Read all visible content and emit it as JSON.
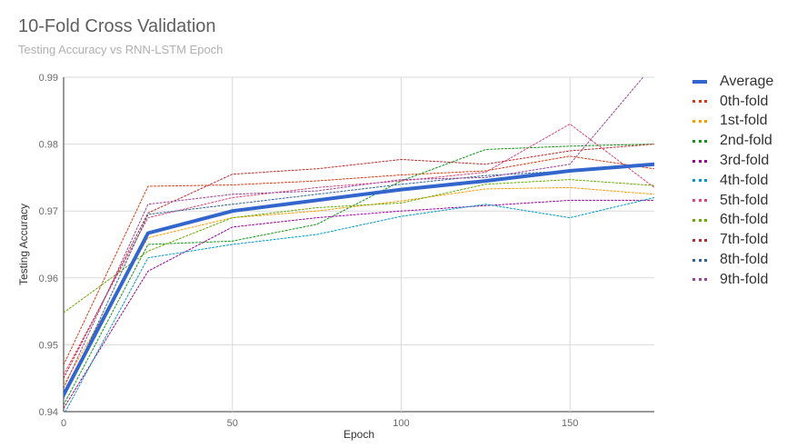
{
  "chart_data": {
    "type": "line",
    "title": "10-Fold Cross Validation",
    "subtitle": "Testing Accuracy vs RNN-LSTM Epoch",
    "xlabel": "Epoch",
    "ylabel": "Testing Accuracy",
    "xlim": [
      0,
      175
    ],
    "ylim": [
      0.94,
      0.99
    ],
    "xticks": [
      0,
      50,
      100,
      150
    ],
    "yticks": [
      0.94,
      0.95,
      0.96,
      0.97,
      0.98,
      0.99
    ],
    "xtick_labels": [
      "0",
      "50",
      "100",
      "150"
    ],
    "ytick_labels": [
      "0.94",
      "0.95",
      "0.96",
      "0.97",
      "0.98",
      "0.99"
    ],
    "grid": true,
    "legend_position": "right",
    "x": [
      0,
      25,
      50,
      75,
      100,
      125,
      150,
      175
    ],
    "series": [
      {
        "name": "Average",
        "color": "#3366cc",
        "style": "solid",
        "values": [
          0.9425,
          0.9667,
          0.97,
          0.9716,
          0.9732,
          0.9745,
          0.976,
          0.977
        ]
      },
      {
        "name": "0th-fold",
        "color": "#dc3912",
        "style": "dotted",
        "values": [
          0.947,
          0.9737,
          0.9739,
          0.9745,
          0.9754,
          0.976,
          0.9782,
          0.9763
        ]
      },
      {
        "name": "1st-fold",
        "color": "#ff9900",
        "style": "dotted",
        "values": [
          0.944,
          0.966,
          0.969,
          0.97,
          0.9715,
          0.9733,
          0.9735,
          0.9725
        ]
      },
      {
        "name": "2nd-fold",
        "color": "#109618",
        "style": "dotted",
        "values": [
          0.941,
          0.965,
          0.9655,
          0.968,
          0.9745,
          0.9792,
          0.9797,
          0.98
        ]
      },
      {
        "name": "3rd-fold",
        "color": "#990099",
        "style": "dotted",
        "values": [
          0.9405,
          0.961,
          0.9676,
          0.969,
          0.97,
          0.9708,
          0.9716,
          0.9716
        ]
      },
      {
        "name": "4th-fold",
        "color": "#0099c6",
        "style": "dotted",
        "values": [
          0.9395,
          0.963,
          0.965,
          0.9665,
          0.9692,
          0.971,
          0.969,
          0.972
        ]
      },
      {
        "name": "5th-fold",
        "color": "#dd4477",
        "style": "dotted",
        "values": [
          0.9455,
          0.969,
          0.972,
          0.9735,
          0.9745,
          0.9758,
          0.983,
          0.9735
        ]
      },
      {
        "name": "6th-fold",
        "color": "#66aa00",
        "style": "dotted",
        "values": [
          0.9548,
          0.964,
          0.969,
          0.9705,
          0.9712,
          0.974,
          0.9747,
          0.9738
        ]
      },
      {
        "name": "7th-fold",
        "color": "#b82e2e",
        "style": "dotted",
        "values": [
          0.945,
          0.9697,
          0.9755,
          0.9763,
          0.9777,
          0.977,
          0.979,
          0.98
        ]
      },
      {
        "name": "8th-fold",
        "color": "#316395",
        "style": "dotted",
        "values": [
          0.942,
          0.9695,
          0.971,
          0.9725,
          0.974,
          0.9753,
          0.976,
          0.9768
        ]
      },
      {
        "name": "9th-fold",
        "color": "#994499",
        "style": "dotted",
        "values": [
          0.9435,
          0.971,
          0.9725,
          0.973,
          0.9747,
          0.975,
          0.977,
          0.992
        ]
      }
    ]
  }
}
